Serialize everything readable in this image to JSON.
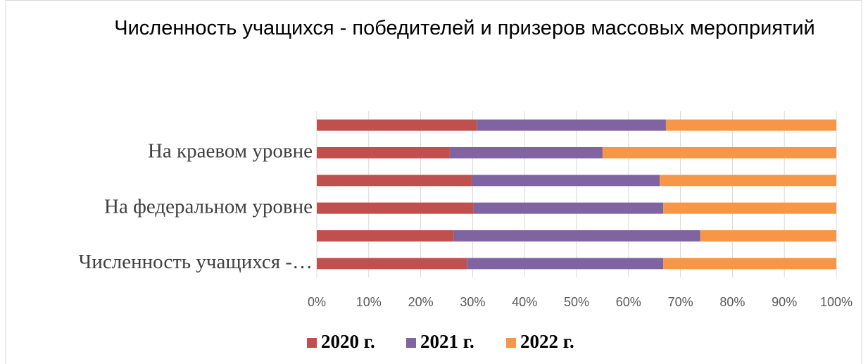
{
  "chart_data": {
    "type": "stacked_bar_100",
    "title": "Численность учащихся - победителей и призеров массовых мероприятий",
    "categories": [
      null,
      "На краевом  уровне",
      null,
      "На федеральном уровне",
      null,
      "Численность учащихся -…"
    ],
    "series": [
      {
        "name": "2020 г.",
        "color": "#c0504d",
        "values": [
          30.8,
          25.6,
          29.8,
          30.2,
          26.4,
          28.9
        ]
      },
      {
        "name": "2021 г.",
        "color": "#8064a2",
        "values": [
          36.4,
          29.4,
          36.2,
          36.5,
          47.4,
          37.8
        ]
      },
      {
        "name": "2022 г.",
        "color": "#f79646",
        "values": [
          32.8,
          45.0,
          34.0,
          33.3,
          26.2,
          33.3
        ]
      }
    ],
    "xlim": [
      0,
      100
    ],
    "xticks": [
      {
        "value": 0,
        "label": "0%"
      },
      {
        "value": 10,
        "label": "10%"
      },
      {
        "value": 20,
        "label": "20%"
      },
      {
        "value": 30,
        "label": "30%"
      },
      {
        "value": 40,
        "label": "40%"
      },
      {
        "value": 50,
        "label": "50%"
      },
      {
        "value": 60,
        "label": "60%"
      },
      {
        "value": 70,
        "label": "70%"
      },
      {
        "value": 80,
        "label": "80%"
      },
      {
        "value": 90,
        "label": "90%"
      },
      {
        "value": 100,
        "label": "100%"
      }
    ],
    "grid": true,
    "legend": "bottom"
  }
}
